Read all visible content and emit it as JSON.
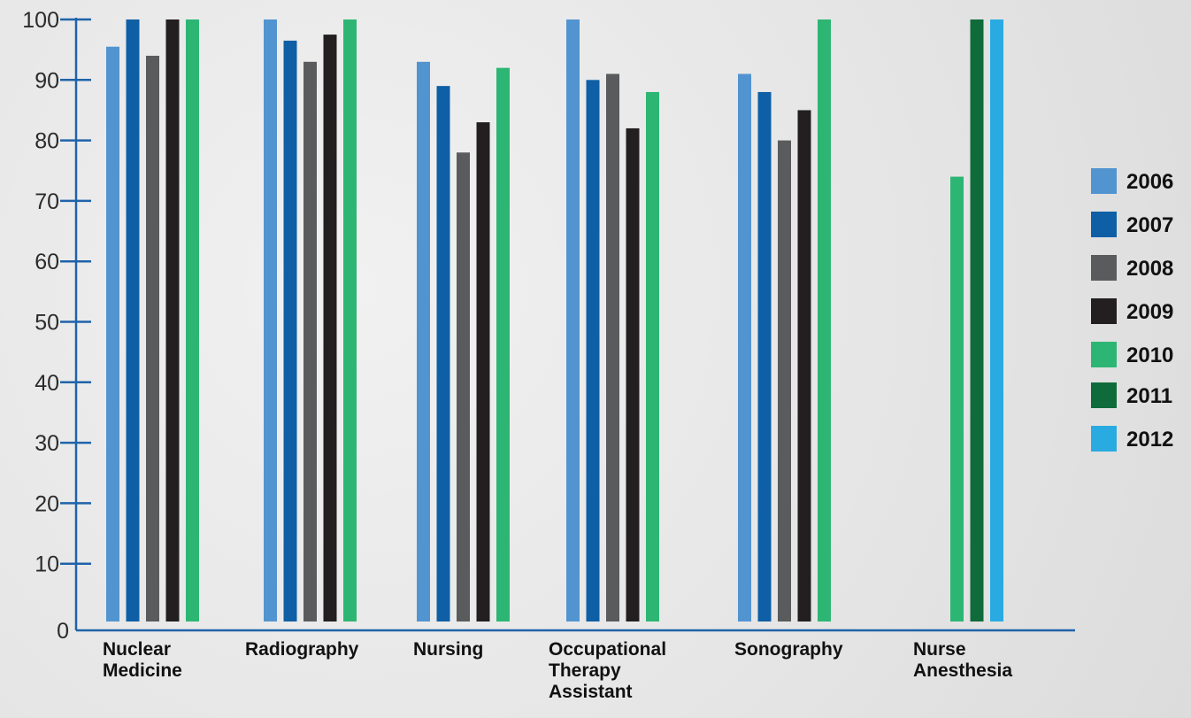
{
  "chart_data": {
    "type": "bar",
    "categories": [
      [
        "Nuclear",
        "Medicine"
      ],
      [
        "Radiography"
      ],
      [
        "Nursing"
      ],
      [
        "Occupational",
        "Therapy",
        "Assistant"
      ],
      [
        "Sonography"
      ],
      [
        "Nurse",
        "Anesthesia"
      ]
    ],
    "series": [
      {
        "name": "2006",
        "color": "#5294d0",
        "values": [
          95.5,
          100,
          93,
          100,
          91,
          null
        ]
      },
      {
        "name": "2007",
        "color": "#0e5fa5",
        "values": [
          100,
          96.5,
          89,
          90,
          null,
          null
        ]
      },
      {
        "name": "2008",
        "color": "#5a5b5d",
        "values": [
          94,
          93,
          78,
          91,
          80,
          null
        ]
      },
      {
        "name": "2009",
        "color": "#231f20",
        "values": [
          100,
          97.5,
          83,
          82,
          85,
          null
        ]
      },
      {
        "name": "2010",
        "color": "#2db673",
        "values": [
          100,
          100,
          92,
          88,
          100,
          74
        ]
      },
      {
        "name": "2011",
        "color": "#0f6b3a",
        "values": [
          null,
          null,
          null,
          null,
          null,
          100
        ]
      },
      {
        "name": "2012",
        "color": "#29abe2",
        "values": [
          null,
          null,
          null,
          null,
          null,
          100
        ]
      }
    ],
    "sonography_2007": 88,
    "ylim": [
      0,
      100
    ],
    "yticks": [
      0,
      10,
      20,
      30,
      40,
      50,
      60,
      70,
      80,
      90,
      100
    ],
    "axis_color": "#1f63a9",
    "legend_position": "right",
    "grid": false
  }
}
